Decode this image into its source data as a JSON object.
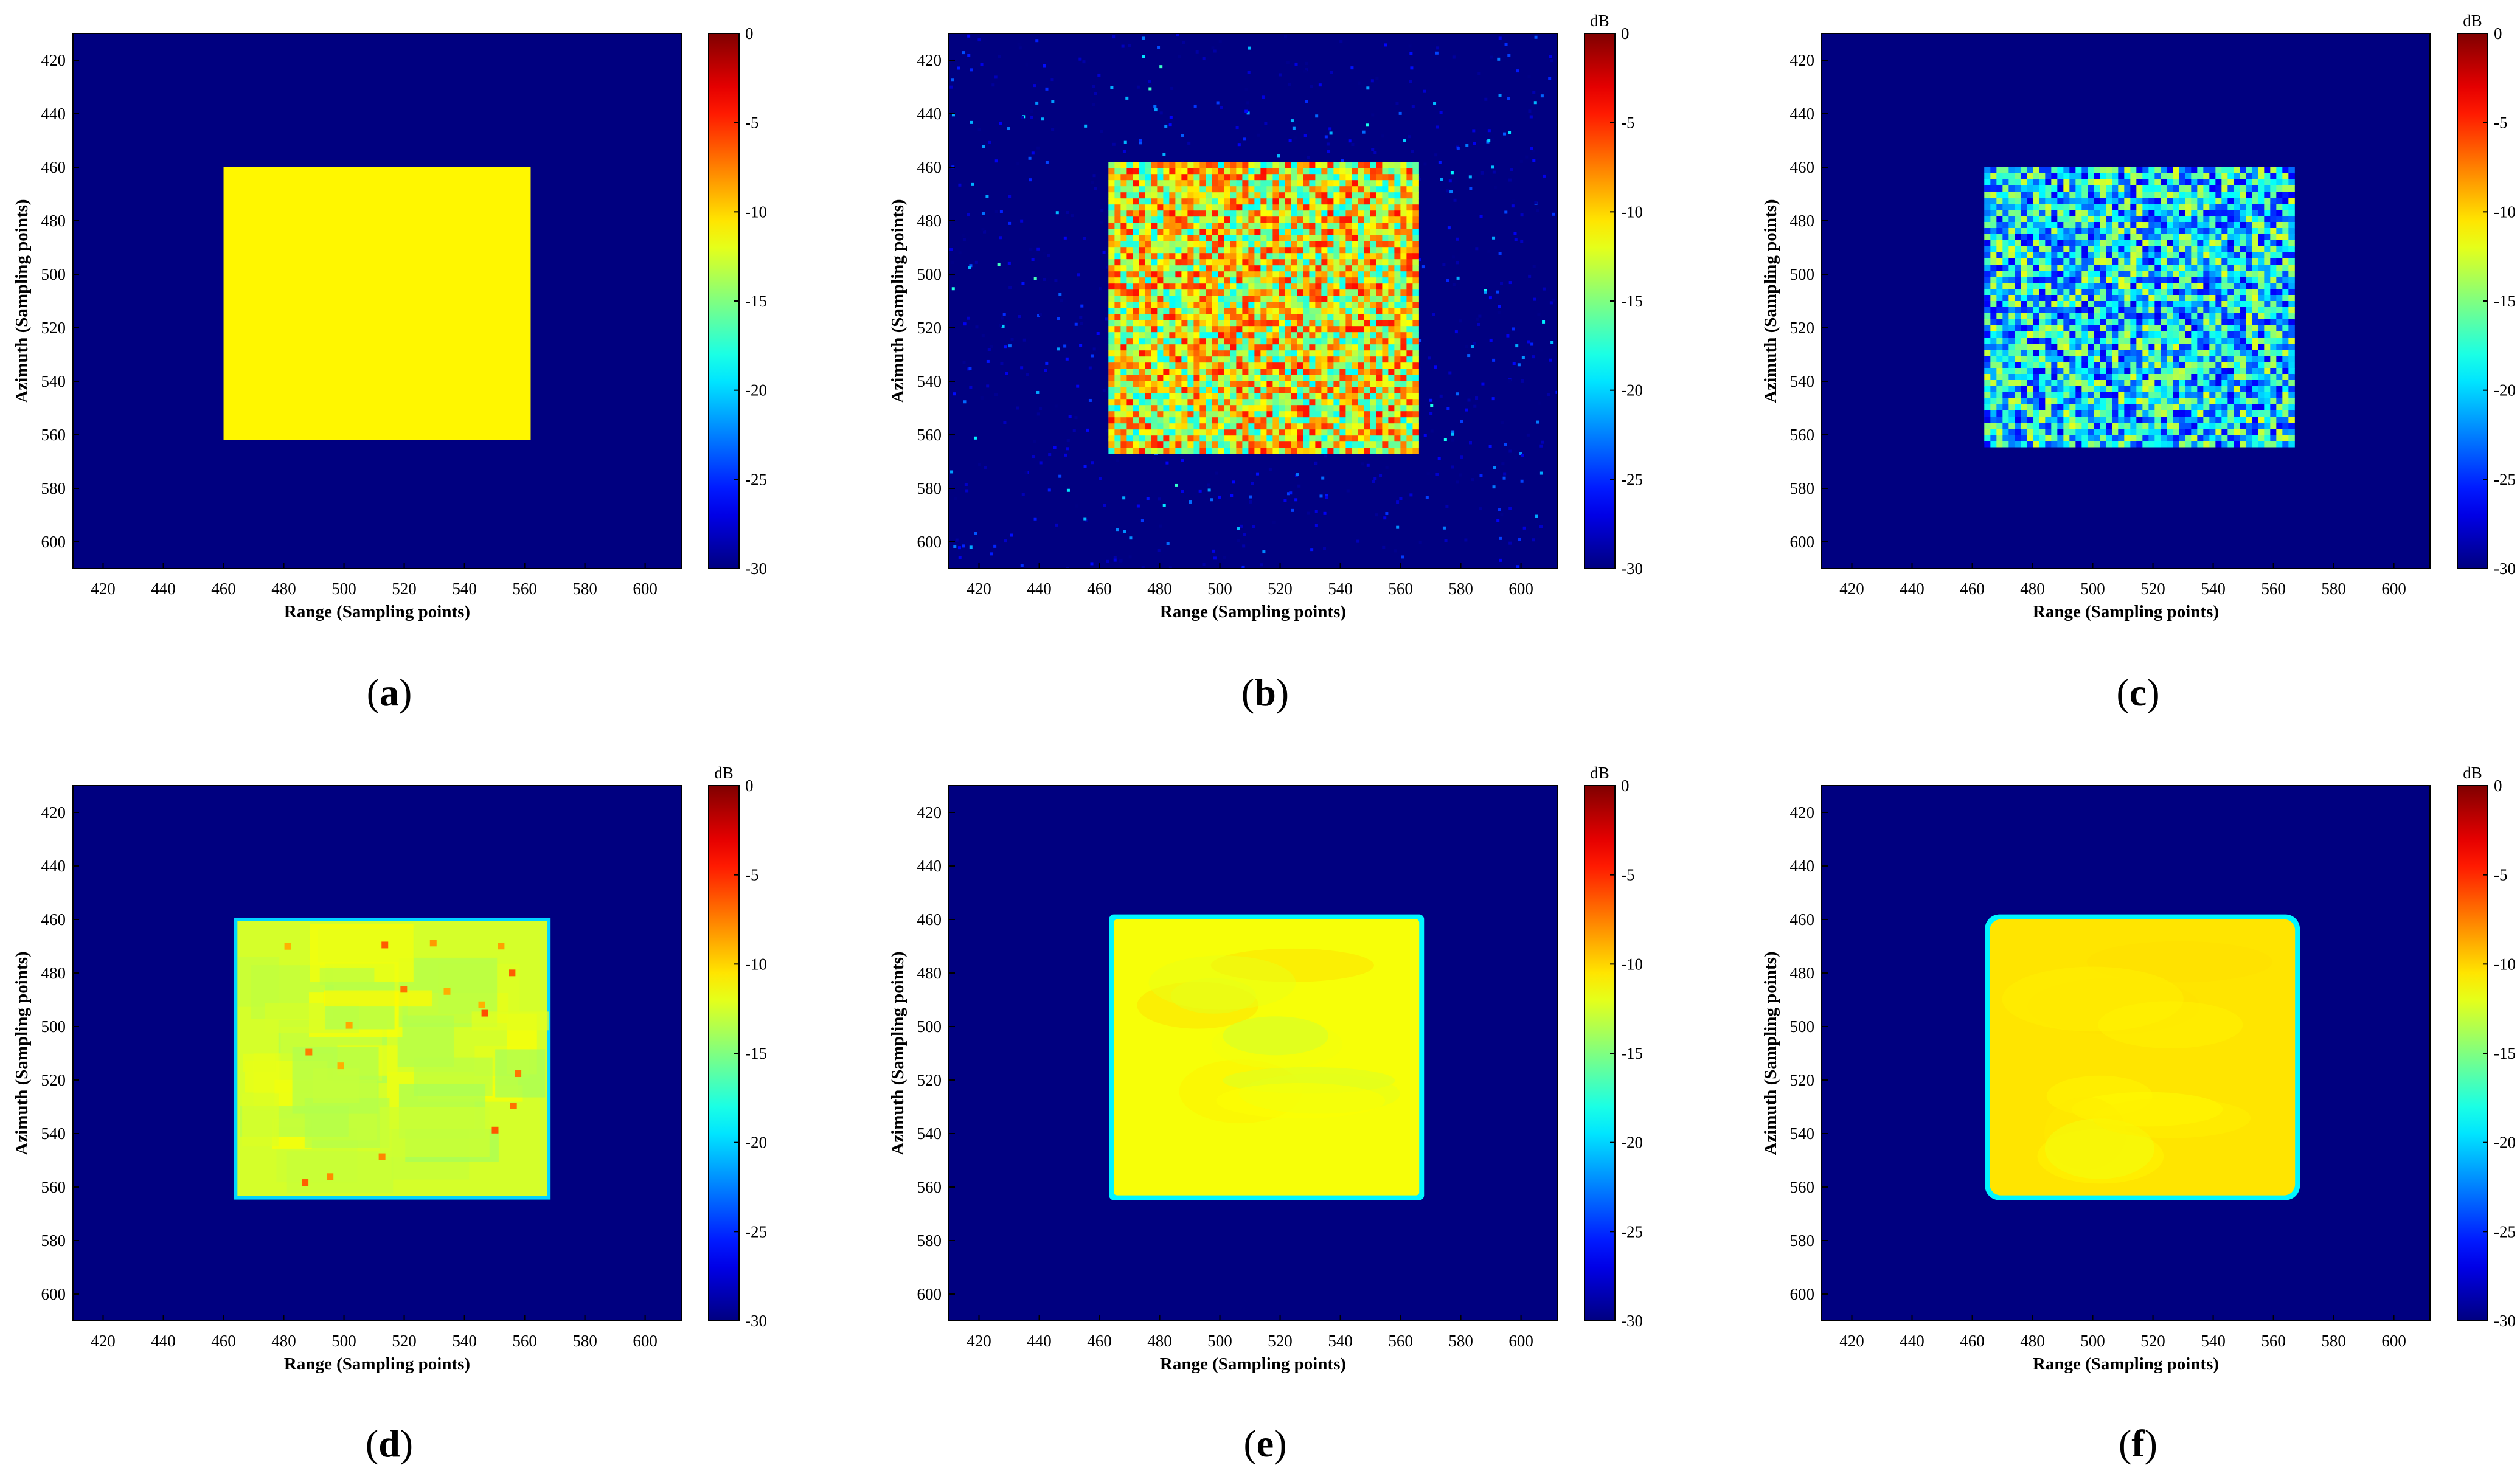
{
  "chart_data": [
    {
      "type": "heatmap",
      "panel": "a",
      "caption_letter": "a",
      "xlabel": "Range (Sampling points)",
      "ylabel": "Azimuth (Sampling points)",
      "xlim": [
        410,
        612
      ],
      "ylim": [
        410,
        610
      ],
      "xticks": [
        420,
        440,
        460,
        480,
        500,
        520,
        540,
        560,
        580,
        600
      ],
      "yticks": [
        420,
        440,
        460,
        480,
        500,
        520,
        540,
        560,
        580,
        600
      ],
      "colorbar": {
        "label": "",
        "min": -30,
        "max": 0,
        "ticks": [
          0,
          -5,
          -10,
          -15,
          -20,
          -25,
          -30
        ],
        "colormap": "jet"
      },
      "background_db": -30,
      "target": {
        "x_range": [
          460,
          562
        ],
        "y_range": [
          460,
          562
        ],
        "level_db": -11,
        "texture": "uniform"
      }
    },
    {
      "type": "heatmap",
      "panel": "b",
      "caption_letter": "b",
      "xlabel": "Range (Sampling points)",
      "ylabel": "Azimuth (Sampling points)",
      "xlim": [
        410,
        612
      ],
      "ylim": [
        410,
        610
      ],
      "xticks": [
        420,
        440,
        460,
        480,
        500,
        520,
        540,
        560,
        580,
        600
      ],
      "yticks": [
        420,
        440,
        460,
        480,
        500,
        520,
        540,
        560,
        580,
        600
      ],
      "colorbar": {
        "label": "dB",
        "min": -30,
        "max": 0,
        "ticks": [
          0,
          -5,
          -10,
          -15,
          -20,
          -25,
          -30
        ],
        "colormap": "jet"
      },
      "background_db": -30,
      "target": {
        "x_range": [
          463,
          566
        ],
        "y_range": [
          458,
          565
        ],
        "level_db": -10,
        "texture": "speckle-strong"
      }
    },
    {
      "type": "heatmap",
      "panel": "c",
      "caption_letter": "c",
      "xlabel": "Range (Sampling points)",
      "ylabel": "Azimuth (Sampling points)",
      "xlim": [
        410,
        612
      ],
      "ylim": [
        410,
        610
      ],
      "xticks": [
        420,
        440,
        460,
        480,
        500,
        520,
        540,
        560,
        580,
        600
      ],
      "yticks": [
        420,
        440,
        460,
        480,
        500,
        520,
        540,
        560,
        580,
        600
      ],
      "colorbar": {
        "label": "dB",
        "min": -30,
        "max": 0,
        "ticks": [
          0,
          -5,
          -10,
          -15,
          -20,
          -25,
          -30
        ],
        "colormap": "jet"
      },
      "background_db": -30,
      "target": {
        "x_range": [
          464,
          567
        ],
        "y_range": [
          460,
          563
        ],
        "level_db": -18,
        "texture": "speckle-weak"
      }
    },
    {
      "type": "heatmap",
      "panel": "d",
      "caption_letter": "d",
      "xlabel": "Range (Sampling points)",
      "ylabel": "Azimuth (Sampling points)",
      "xlim": [
        410,
        612
      ],
      "ylim": [
        410,
        610
      ],
      "xticks": [
        420,
        440,
        460,
        480,
        500,
        520,
        540,
        560,
        580,
        600
      ],
      "yticks": [
        420,
        440,
        460,
        480,
        500,
        520,
        540,
        560,
        580,
        600
      ],
      "colorbar": {
        "label": "dB",
        "min": -30,
        "max": 0,
        "ticks": [
          0,
          -5,
          -10,
          -15,
          -20,
          -25,
          -30
        ],
        "colormap": "jet"
      },
      "background_db": -30,
      "target": {
        "x_range": [
          464,
          568
        ],
        "y_range": [
          460,
          564
        ],
        "level_db": -13,
        "texture": "blocky"
      }
    },
    {
      "type": "heatmap",
      "panel": "e",
      "caption_letter": "e",
      "xlabel": "Range (Sampling points)",
      "ylabel": "Azimuth (Sampling points)",
      "xlim": [
        410,
        612
      ],
      "ylim": [
        410,
        610
      ],
      "xticks": [
        420,
        440,
        460,
        480,
        500,
        520,
        540,
        560,
        580,
        600
      ],
      "yticks": [
        420,
        440,
        460,
        480,
        500,
        520,
        540,
        560,
        580,
        600
      ],
      "colorbar": {
        "label": "dB",
        "min": -30,
        "max": 0,
        "ticks": [
          0,
          -5,
          -10,
          -15,
          -20,
          -25,
          -30
        ],
        "colormap": "jet"
      },
      "background_db": -30,
      "target": {
        "x_range": [
          464,
          567
        ],
        "y_range": [
          459,
          564
        ],
        "level_db": -11.5,
        "texture": "smooth"
      }
    },
    {
      "type": "heatmap",
      "panel": "f",
      "caption_letter": "f",
      "xlabel": "Range (Sampling points)",
      "ylabel": "Azimuth (Sampling points)",
      "xlim": [
        410,
        612
      ],
      "ylim": [
        410,
        610
      ],
      "xticks": [
        420,
        440,
        460,
        480,
        500,
        520,
        540,
        560,
        580,
        600
      ],
      "yticks": [
        420,
        440,
        460,
        480,
        500,
        520,
        540,
        560,
        580,
        600
      ],
      "colorbar": {
        "label": "dB",
        "min": -30,
        "max": 0,
        "ticks": [
          0,
          -5,
          -10,
          -15,
          -20,
          -25,
          -30
        ],
        "colormap": "jet"
      },
      "background_db": -30,
      "target": {
        "x_range": [
          465,
          568
        ],
        "y_range": [
          459,
          564
        ],
        "level_db": -10.5,
        "texture": "very-smooth"
      }
    }
  ]
}
